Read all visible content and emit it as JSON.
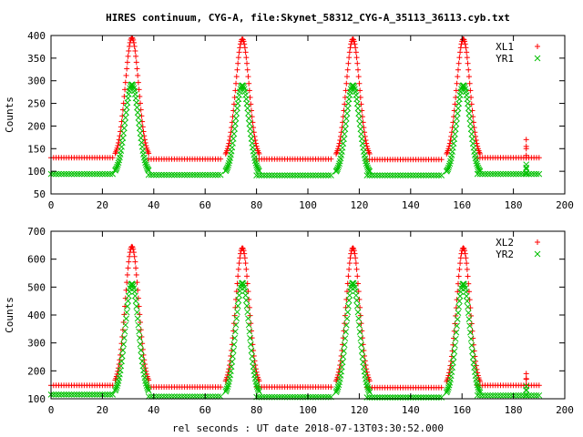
{
  "figure": {
    "title": "HIRES continuum, CYG-A, file:Skynet_58312_CYG-A_35113_36113.cyb.txt",
    "xlabel": "rel seconds : UT date 2018-07-13T03:30:52.000"
  },
  "colors": {
    "red": "#ff0000",
    "green": "#00c000",
    "axis": "#000000"
  },
  "chart_data": [
    {
      "type": "scatter",
      "title": "HIRES continuum, CYG-A, file:Skynet_58312_CYG-A_35113_36113.cyb.txt",
      "xlabel": "",
      "ylabel": "Counts",
      "xlim": [
        0,
        200
      ],
      "ylim": [
        50,
        400
      ],
      "xticks": [
        0,
        20,
        40,
        60,
        80,
        100,
        120,
        140,
        160,
        180,
        200
      ],
      "yticks": [
        50,
        100,
        150,
        200,
        250,
        300,
        350,
        400
      ],
      "legend_position": "top-right",
      "series": [
        {
          "name": "XL1",
          "marker": "plus",
          "color": "#ff0000",
          "baseline_segments": [
            [
              0,
              24,
              130
            ],
            [
              38,
              66,
              127
            ],
            [
              80,
              109,
              127
            ],
            [
              123,
              152,
              126
            ],
            [
              166,
              190,
              130
            ]
          ],
          "peaks": [
            {
              "center": 31.5,
              "peak": 395,
              "base": 128,
              "halfwidth": 6.5
            },
            {
              "center": 74.5,
              "peak": 392,
              "base": 127,
              "halfwidth": 6.5
            },
            {
              "center": 117.5,
              "peak": 392,
              "base": 127,
              "halfwidth": 6.5
            },
            {
              "center": 160.5,
              "peak": 392,
              "base": 127,
              "halfwidth": 6.5
            }
          ],
          "cal_blip": {
            "x": 185,
            "values": [
              130,
              150,
              170,
              155,
              135
            ]
          }
        },
        {
          "name": "YR1",
          "marker": "cross",
          "color": "#00c000",
          "baseline_segments": [
            [
              0,
              24,
              94
            ],
            [
              38,
              66,
              92
            ],
            [
              80,
              109,
              91
            ],
            [
              123,
              152,
              91
            ],
            [
              166,
              190,
              94
            ]
          ],
          "peaks": [
            {
              "center": 31.5,
              "peak": 292,
              "base": 93,
              "halfwidth": 6.5
            },
            {
              "center": 74.5,
              "peak": 290,
              "base": 92,
              "halfwidth": 6.5
            },
            {
              "center": 117.5,
              "peak": 290,
              "base": 91,
              "halfwidth": 6.5
            },
            {
              "center": 160.5,
              "peak": 290,
              "base": 91,
              "halfwidth": 6.5
            }
          ],
          "cal_blip": {
            "x": 185,
            "values": [
              94,
              105,
              115,
              108,
              96
            ]
          }
        }
      ]
    },
    {
      "type": "scatter",
      "title": "",
      "xlabel": "rel seconds : UT date 2018-07-13T03:30:52.000",
      "ylabel": "Counts",
      "xlim": [
        0,
        200
      ],
      "ylim": [
        100,
        700
      ],
      "xticks": [
        0,
        20,
        40,
        60,
        80,
        100,
        120,
        140,
        160,
        180,
        200
      ],
      "yticks": [
        100,
        200,
        300,
        400,
        500,
        600,
        700
      ],
      "legend_position": "top-right",
      "series": [
        {
          "name": "XL2",
          "marker": "plus",
          "color": "#ff0000",
          "baseline_segments": [
            [
              0,
              24,
              148
            ],
            [
              38,
              66,
              142
            ],
            [
              80,
              109,
              142
            ],
            [
              123,
              152,
              140
            ],
            [
              166,
              190,
              148
            ]
          ],
          "peaks": [
            {
              "center": 31.5,
              "peak": 645,
              "base": 145,
              "halfwidth": 6.5
            },
            {
              "center": 74.5,
              "peak": 640,
              "base": 142,
              "halfwidth": 6.5
            },
            {
              "center": 117.5,
              "peak": 640,
              "base": 142,
              "halfwidth": 6.5
            },
            {
              "center": 160.5,
              "peak": 640,
              "base": 140,
              "halfwidth": 6.5
            }
          ],
          "cal_blip": {
            "x": 185,
            "values": [
              148,
              170,
              190,
              172,
              150
            ]
          }
        },
        {
          "name": "YR2",
          "marker": "cross",
          "color": "#00c000",
          "baseline_segments": [
            [
              0,
              24,
              115
            ],
            [
              38,
              66,
              108
            ],
            [
              80,
              109,
              106
            ],
            [
              123,
              152,
              105
            ],
            [
              166,
              190,
              112
            ]
          ],
          "peaks": [
            {
              "center": 31.5,
              "peak": 512,
              "base": 112,
              "halfwidth": 6.5
            },
            {
              "center": 74.5,
              "peak": 515,
              "base": 108,
              "halfwidth": 6.5
            },
            {
              "center": 117.5,
              "peak": 515,
              "base": 106,
              "halfwidth": 6.5
            },
            {
              "center": 160.5,
              "peak": 512,
              "base": 105,
              "halfwidth": 6.5
            }
          ],
          "cal_blip": {
            "x": 185,
            "values": [
              112,
              130,
              145,
              132,
              114
            ]
          }
        }
      ]
    }
  ]
}
